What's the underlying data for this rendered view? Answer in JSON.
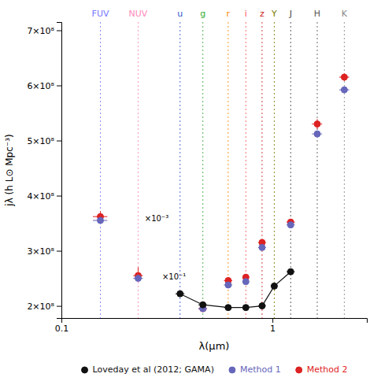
{
  "chart_data": {
    "type": "scatter",
    "xlabel": "λ(μm)",
    "ylabel": "jλ (h L⊙ Mpc⁻³)",
    "log": "x",
    "xlim": [
      0.1,
      2.8
    ],
    "ylim": [
      178000000.0,
      715000000.0
    ],
    "xticks": [
      0.1,
      1
    ],
    "yticks": [
      {
        "value": 200000000.0,
        "label": "2×10⁸"
      },
      {
        "value": 300000000.0,
        "label": "3×10⁸"
      },
      {
        "value": 400000000.0,
        "label": "4×10⁸"
      },
      {
        "value": 500000000.0,
        "label": "5×10⁸"
      },
      {
        "value": 600000000.0,
        "label": "6×10⁸"
      },
      {
        "value": 700000000.0,
        "label": "7×10⁸"
      }
    ],
    "grid": false,
    "legend": "bottom",
    "bands": [
      {
        "text": "FUV",
        "x": 0.153,
        "color": "#7777ff"
      },
      {
        "text": "NUV",
        "x": 0.231,
        "color": "#ff88bb"
      },
      {
        "text": "u",
        "x": 0.365,
        "color": "#3355cc"
      },
      {
        "text": "g",
        "x": 0.468,
        "color": "#33aa33"
      },
      {
        "text": "r",
        "x": 0.617,
        "color": "#ff8800"
      },
      {
        "text": "i",
        "x": 0.748,
        "color": "#ff5555"
      },
      {
        "text": "z",
        "x": 0.893,
        "color": "#cc2222"
      },
      {
        "text": "Y",
        "x": 1.02,
        "color": "#777700"
      },
      {
        "text": "J",
        "x": 1.22,
        "color": "#444444"
      },
      {
        "text": "H",
        "x": 1.63,
        "color": "#555555"
      },
      {
        "text": "K",
        "x": 2.19,
        "color": "#888888"
      }
    ],
    "series": [
      {
        "name": "Loveday et al (2012; GAMA)",
        "type": "line",
        "marker": "circle",
        "line_style": "solid",
        "color": "#111111",
        "x": [
          0.365,
          0.468,
          0.617,
          0.748,
          0.893,
          1.02,
          1.22
        ],
        "values": [
          222000000.0,
          202000000.0,
          197000000.0,
          197000000.0,
          200000000.0,
          236000000.0,
          262000000.0
        ],
        "xerr_lo": [
          0.018,
          0.022,
          0.028,
          0.028,
          0.038,
          0.038,
          0.055
        ],
        "xerr_hi": [
          0.018,
          0.022,
          0.028,
          0.028,
          0.038,
          0.038,
          0.055
        ],
        "yerr_lo": [
          4000000.0,
          3500000.0,
          2500000.0,
          2500000.0,
          2500000.0,
          4000000.0,
          5000000.0
        ],
        "yerr_hi": [
          4000000.0,
          3500000.0,
          2500000.0,
          2500000.0,
          2500000.0,
          4000000.0,
          5000000.0
        ]
      },
      {
        "name": "Method 1",
        "type": "scatter",
        "marker": "circle",
        "line_style": "none",
        "color": "#6666bb",
        "x": [
          0.153,
          0.231,
          0.468,
          0.617,
          0.748,
          0.893,
          1.22,
          1.63,
          2.19
        ],
        "values": [
          355000000.0,
          250000000.0,
          195000000.0,
          238000000.0,
          244000000.0,
          306000000.0,
          347000000.0,
          512000000.0,
          592000000.0
        ],
        "xerr_lo": [
          0.012,
          0.012,
          0.022,
          0.028,
          0.028,
          0.038,
          0.055,
          0.09,
          0.12
        ],
        "xerr_hi": [
          0.012,
          0.012,
          0.022,
          0.028,
          0.028,
          0.038,
          0.055,
          0.09,
          0.12
        ],
        "yerr_lo": [
          3000000.0,
          4000000.0,
          3000000.0,
          4000000.0,
          3000000.0,
          3000000.0,
          4000000.0,
          6000000.0,
          5000000.0
        ],
        "yerr_hi": [
          3000000.0,
          4000000.0,
          3000000.0,
          4000000.0,
          3000000.0,
          3000000.0,
          4000000.0,
          6000000.0,
          5000000.0
        ]
      },
      {
        "name": "Method 2",
        "type": "scatter",
        "marker": "circle",
        "line_style": "none",
        "color": "#dd2222",
        "x": [
          0.153,
          0.231,
          0.468,
          0.617,
          0.748,
          0.893,
          1.22,
          1.63,
          2.19
        ],
        "values": [
          362000000.0,
          255000000.0,
          195000000.0,
          246000000.0,
          252000000.0,
          315000000.0,
          352000000.0,
          530000000.0,
          615000000.0
        ],
        "xerr_lo": [
          0.012,
          0.012,
          0.022,
          0.028,
          0.028,
          0.038,
          0.055,
          0.09,
          0.12
        ],
        "xerr_hi": [
          0.012,
          0.012,
          0.022,
          0.028,
          0.028,
          0.038,
          0.055,
          0.09,
          0.12
        ],
        "yerr_lo": [
          6000000.0,
          9000000.0,
          3000000.0,
          4000000.0,
          3000000.0,
          3000000.0,
          6000000.0,
          9000000.0,
          7000000.0
        ],
        "yerr_hi": [
          10000000.0,
          15000000.0,
          3000000.0,
          4000000.0,
          3000000.0,
          3000000.0,
          6000000.0,
          9000000.0,
          7000000.0
        ]
      }
    ],
    "annotations": [
      {
        "text": "×10⁻³",
        "x": 0.248,
        "y": 358000000.0
      },
      {
        "text": "×10⁻¹",
        "x": 0.3,
        "y": 252000000.0
      }
    ]
  }
}
